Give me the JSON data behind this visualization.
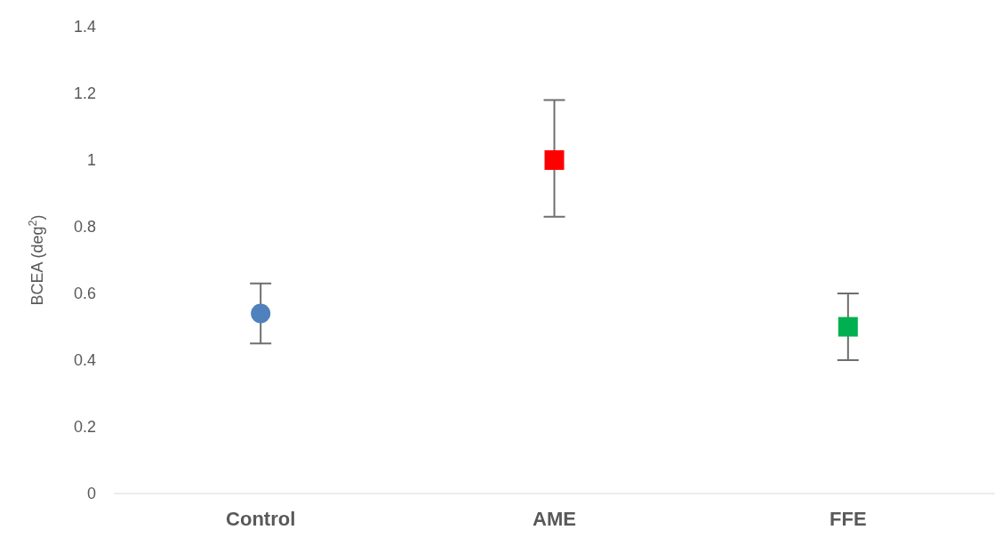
{
  "chart_data": {
    "type": "scatter",
    "ylabel": "BCEA (deg$^{2}$)",
    "categories": [
      "Control",
      "AME",
      "FFE"
    ],
    "ylim": [
      0,
      1.4
    ],
    "yticks": [
      0,
      0.2,
      0.4,
      0.6,
      0.8,
      1,
      1.2,
      1.4
    ],
    "grid": false,
    "legend": false,
    "series": [
      {
        "color": "#4f81bd",
        "marker": "circle",
        "values": [
          0.54,
          null,
          null
        ],
        "errors": [
          [
            0.45,
            0.63
          ],
          null,
          null
        ]
      },
      {
        "color": "#ff0000",
        "marker": "square",
        "values": [
          null,
          1.0,
          null
        ],
        "errors": [
          null,
          [
            0.83,
            1.18
          ],
          null
        ]
      },
      {
        "color": "#00b050",
        "marker": "square",
        "values": [
          null,
          null,
          0.5
        ],
        "errors": [
          null,
          null,
          [
            0.4,
            0.6
          ]
        ]
      }
    ]
  }
}
